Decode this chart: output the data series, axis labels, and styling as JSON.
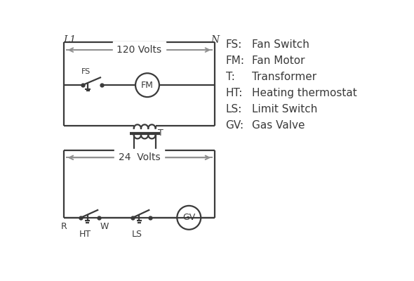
{
  "bg_color": "#ffffff",
  "line_color": "#3a3a3a",
  "arrow_color": "#909090",
  "legend": [
    [
      "FS:",
      "Fan Switch"
    ],
    [
      "FM:",
      "Fan Motor"
    ],
    [
      "T:",
      "Transformer"
    ],
    [
      "HT:",
      "Heating thermostat"
    ],
    [
      "LS:",
      "Limit Switch"
    ],
    [
      "GV:",
      "Gas Valve"
    ]
  ],
  "volt120_label": "120 Volts",
  "volt24_label": "24  Volts",
  "L1_label": "L1",
  "N_label": "N",
  "T_label": "T",
  "R_label": "R",
  "W_label": "W",
  "HT_label": "HT",
  "LS_label": "LS",
  "FS_label": "FS",
  "FM_label": "FM",
  "GV_label": "GV"
}
